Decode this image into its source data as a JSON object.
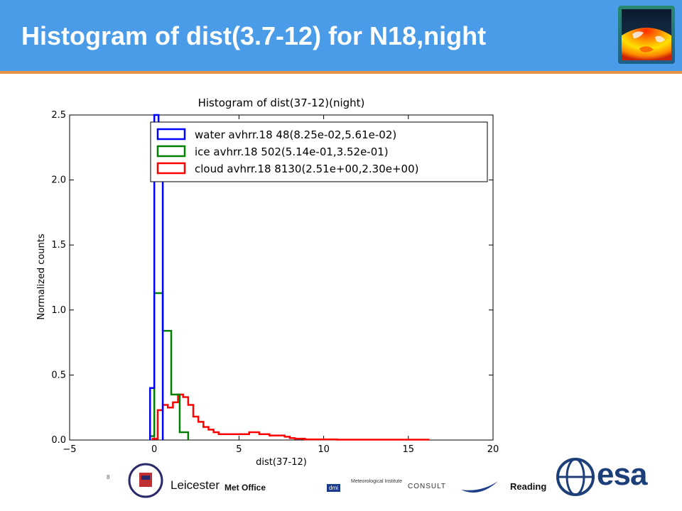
{
  "slide": {
    "title": "Histogram of dist(3.7-12) for N18,night"
  },
  "colors": {
    "header": "#4a9be8",
    "header_line": "#e8924a",
    "water": "#0000ff",
    "ice": "#008000",
    "cloud": "#ff0000"
  },
  "footer": {
    "slide_number": "8",
    "logos": [
      "Leicester",
      "Met Office",
      "dmi",
      "Meteorological Institute",
      "CONSULT",
      "Reading",
      "esa"
    ]
  },
  "chart_data": {
    "type": "histogram",
    "title": "Histogram of dist(37-12)(night)",
    "xlabel": "dist(37-12)",
    "ylabel": "Normalized counts",
    "xlim": [
      -5,
      20
    ],
    "ylim": [
      0.0,
      2.5
    ],
    "xticks": [
      "−5",
      "0",
      "5",
      "10",
      "15",
      "20"
    ],
    "yticks": [
      "0.0",
      "0.5",
      "1.0",
      "1.5",
      "2.0",
      "2.5"
    ],
    "legend_position": "upper right",
    "series": [
      {
        "name": "water avhrr.18 48(8.25e-02,5.61e-02)",
        "color": "#0000ff",
        "bin_edges": [
          -0.25,
          0.0,
          0.25,
          0.5
        ],
        "values": [
          0.4,
          2.5,
          2.0
        ]
      },
      {
        "name": "ice avhrr.18 502(5.14e-01,3.52e-01)",
        "color": "#008000",
        "bin_edges": [
          -0.25,
          0.0,
          0.5,
          1.0,
          1.5,
          2.0
        ],
        "values": [
          0.03,
          1.13,
          0.84,
          0.35,
          0.06
        ]
      },
      {
        "name": "cloud avhrr.18 8130(2.51e+00,2.30e+00)",
        "color": "#ff0000",
        "bin_edges": [
          -0.1,
          0.2,
          0.5,
          0.8,
          1.1,
          1.4,
          1.7,
          2.0,
          2.3,
          2.6,
          2.9,
          3.2,
          3.5,
          3.8,
          4.1,
          4.4,
          4.7,
          5.0,
          5.3,
          5.6,
          5.9,
          6.2,
          6.5,
          6.8,
          7.1,
          7.4,
          7.7,
          8.0,
          8.3,
          8.6,
          8.9,
          9.2,
          9.5,
          10.8,
          16.2
        ],
        "values": [
          0.01,
          0.23,
          0.27,
          0.25,
          0.29,
          0.35,
          0.33,
          0.27,
          0.18,
          0.14,
          0.1,
          0.08,
          0.06,
          0.045,
          0.045,
          0.045,
          0.045,
          0.045,
          0.045,
          0.06,
          0.06,
          0.045,
          0.045,
          0.035,
          0.035,
          0.035,
          0.025,
          0.015,
          0.01,
          0.01,
          0.005,
          0.005,
          0.005,
          0.003
        ]
      }
    ]
  }
}
